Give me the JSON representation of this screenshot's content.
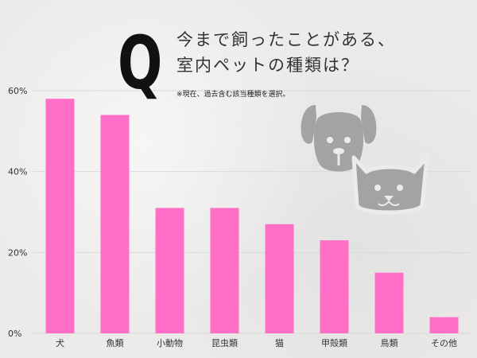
{
  "question_mark": "Q",
  "title_lines": [
    "今まで飼ったことがある、",
    "室内ペットの種類は？"
  ],
  "note": "※現在、過去含む該当種類を選択。",
  "icons": [
    "dog-icon",
    "cat-icon"
  ],
  "colors": {
    "bar": "#ff6ec7",
    "grid": "#d9d9d9",
    "icon": "#a3a3a3",
    "text": "#333333"
  },
  "chart_data": {
    "type": "bar",
    "categories": [
      "犬",
      "魚類",
      "小動物",
      "昆虫類",
      "猫",
      "甲殻類",
      "鳥類",
      "その他"
    ],
    "values": [
      58,
      54,
      31,
      31,
      27,
      23,
      15,
      4
    ],
    "yticks": [
      "0%",
      "20%",
      "40%",
      "60%"
    ],
    "ylim": [
      0,
      60
    ],
    "grid": true
  }
}
